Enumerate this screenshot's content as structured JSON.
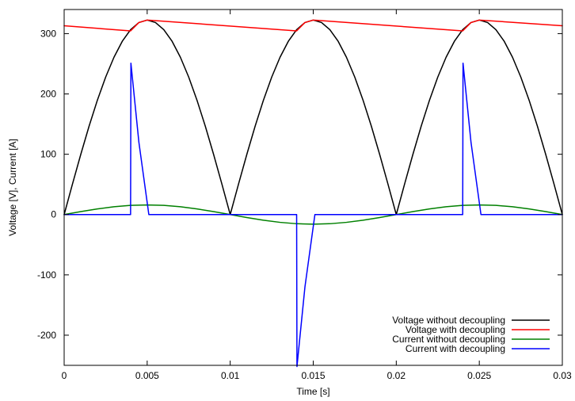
{
  "chart_data": {
    "type": "line",
    "title": "",
    "xlabel": "Time [s]",
    "ylabel": "Voltage [V], Current [A]",
    "xlim": [
      0,
      0.03
    ],
    "ylim": [
      -250,
      340
    ],
    "xticks": [
      0,
      0.005,
      0.01,
      0.015,
      0.02,
      0.025,
      0.03
    ],
    "xtick_labels": [
      "0",
      "0.005",
      "0.01",
      "0.015",
      "0.02",
      "0.025",
      "0.03"
    ],
    "yticks": [
      -200,
      -100,
      0,
      100,
      200,
      300
    ],
    "ytick_labels": [
      "-200",
      "-100",
      "0",
      "100",
      "200",
      "300"
    ],
    "grid": false,
    "legend_position": "bottom-right",
    "series": [
      {
        "name": "Voltage without decoupling",
        "color": "#000000",
        "x": [
          0,
          0.0005,
          0.001,
          0.0015,
          0.002,
          0.0025,
          0.003,
          0.0035,
          0.004,
          0.0045,
          0.005,
          0.0055,
          0.006,
          0.0065,
          0.007,
          0.0075,
          0.008,
          0.0085,
          0.009,
          0.0095,
          0.01,
          0.0105,
          0.011,
          0.0115,
          0.012,
          0.0125,
          0.013,
          0.0135,
          0.014,
          0.0145,
          0.015,
          0.0155,
          0.016,
          0.0165,
          0.017,
          0.0175,
          0.018,
          0.0185,
          0.019,
          0.0195,
          0.02,
          0.0205,
          0.021,
          0.0215,
          0.022,
          0.0225,
          0.023,
          0.0235,
          0.024,
          0.0245,
          0.025,
          0.0255,
          0.026,
          0.0265,
          0.027,
          0.0275,
          0.028,
          0.0285,
          0.029,
          0.0295,
          0.03
        ],
        "y": [
          0,
          50.5,
          99.7,
          146.5,
          189.6,
          228.0,
          260.8,
          287.3,
          306.6,
          318.4,
          322.5,
          318.4,
          306.6,
          287.3,
          260.8,
          228.0,
          189.6,
          146.5,
          99.7,
          50.5,
          0,
          50.5,
          99.7,
          146.5,
          189.6,
          228.0,
          260.8,
          287.3,
          306.6,
          318.4,
          322.5,
          318.4,
          306.6,
          287.3,
          260.8,
          228.0,
          189.6,
          146.5,
          99.7,
          50.5,
          0,
          50.5,
          99.7,
          146.5,
          189.6,
          228.0,
          260.8,
          287.3,
          306.6,
          318.4,
          322.5,
          318.4,
          306.6,
          287.3,
          260.8,
          228.0,
          189.6,
          146.5,
          99.7,
          50.5,
          0
        ]
      },
      {
        "name": "Voltage with decoupling",
        "color": "#ff0000",
        "x": [
          0,
          0.004,
          0.0045,
          0.005,
          0.0053,
          0.014,
          0.0145,
          0.015,
          0.0153,
          0.024,
          0.0245,
          0.025,
          0.0253,
          0.03
        ],
        "y": [
          313,
          304.5,
          318.4,
          322.5,
          322,
          304.5,
          318.4,
          322.5,
          322,
          304.5,
          318.4,
          322.5,
          322,
          313
        ]
      },
      {
        "name": "Current without decoupling",
        "color": "#008000",
        "x": [
          0,
          0.001,
          0.002,
          0.003,
          0.004,
          0.005,
          0.006,
          0.007,
          0.008,
          0.009,
          0.01,
          0.011,
          0.012,
          0.013,
          0.014,
          0.015,
          0.016,
          0.017,
          0.018,
          0.019,
          0.02,
          0.021,
          0.022,
          0.023,
          0.024,
          0.025,
          0.026,
          0.027,
          0.028,
          0.029,
          0.03
        ],
        "y": [
          0,
          4.9,
          9.4,
          12.9,
          15.2,
          16.0,
          15.2,
          12.9,
          9.4,
          4.9,
          0,
          -4.9,
          -9.4,
          -12.9,
          -15.2,
          -16.0,
          -15.2,
          -12.9,
          -9.4,
          -4.9,
          0,
          4.9,
          9.4,
          12.9,
          15.2,
          16.0,
          15.2,
          12.9,
          9.4,
          4.9,
          0
        ]
      },
      {
        "name": "Current with decoupling",
        "color": "#0000ff",
        "x": [
          0,
          0.004,
          0.00402,
          0.0045,
          0.0051,
          0.01,
          0.014,
          0.01402,
          0.0145,
          0.0151,
          0.02,
          0.024,
          0.02402,
          0.0245,
          0.0251,
          0.03
        ],
        "y": [
          0,
          0,
          251,
          120,
          0,
          0,
          0,
          -252,
          -120,
          0,
          0,
          0,
          251,
          120,
          0,
          0
        ]
      }
    ]
  }
}
